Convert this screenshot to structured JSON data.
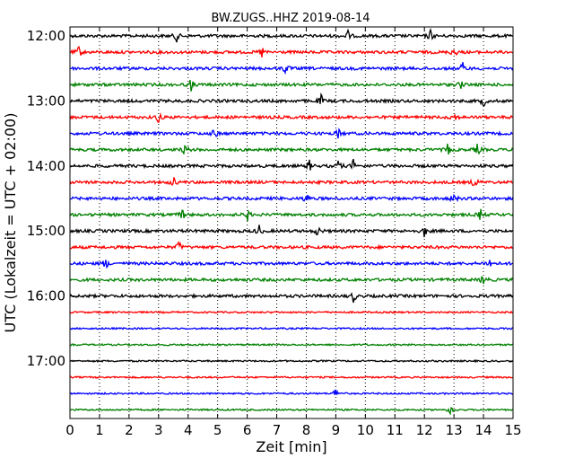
{
  "chart_data": {
    "type": "line",
    "title": "BW.ZUGS..HHZ 2019-08-14",
    "xlabel": "Zeit  [min]",
    "ylabel": "UTC (Lokalzeit = UTC + 02:00)",
    "xlim": [
      0,
      15
    ],
    "x_ticks": [
      "0",
      "1",
      "2",
      "3",
      "4",
      "5",
      "6",
      "7",
      "8",
      "9",
      "10",
      "11",
      "12",
      "13",
      "14",
      "15"
    ],
    "y_tick_labels": [
      "12:00",
      "13:00",
      "14:00",
      "15:00",
      "16:00",
      "17:00"
    ],
    "grid": "vertical dotted at each minute",
    "series_colors": [
      "#000000",
      "#ff0000",
      "#0000ff",
      "#008000"
    ],
    "traces": [
      {
        "start": "12:00",
        "color": "#000000",
        "events": [
          3.6,
          9.4,
          12.2
        ]
      },
      {
        "start": "12:15",
        "color": "#ff0000",
        "events": [
          0.3,
          6.5,
          13.0
        ]
      },
      {
        "start": "12:30",
        "color": "#0000ff",
        "events": [
          7.3,
          13.3
        ]
      },
      {
        "start": "12:45",
        "color": "#008000",
        "events": [
          4.1,
          13.2
        ]
      },
      {
        "start": "13:00",
        "color": "#000000",
        "events": [
          8.5,
          14.0
        ]
      },
      {
        "start": "13:15",
        "color": "#ff0000",
        "events": [
          3.0,
          13.0
        ]
      },
      {
        "start": "13:30",
        "color": "#0000ff",
        "events": [
          4.9,
          9.1
        ]
      },
      {
        "start": "13:45",
        "color": "#008000",
        "events": [
          3.9,
          12.8,
          13.8
        ]
      },
      {
        "start": "14:00",
        "color": "#000000",
        "events": [
          8.1,
          9.1,
          9.6
        ]
      },
      {
        "start": "14:15",
        "color": "#ff0000",
        "events": [
          3.5,
          13.7
        ]
      },
      {
        "start": "14:30",
        "color": "#0000ff",
        "events": [
          8.0,
          13.0
        ]
      },
      {
        "start": "14:45",
        "color": "#008000",
        "events": [
          3.8,
          6.0,
          13.9
        ]
      },
      {
        "start": "15:00",
        "color": "#000000",
        "events": [
          6.4,
          8.4,
          12.0
        ]
      },
      {
        "start": "15:15",
        "color": "#ff0000",
        "events": [
          3.7
        ]
      },
      {
        "start": "15:30",
        "color": "#0000ff",
        "events": [
          1.2,
          14.2
        ]
      },
      {
        "start": "15:45",
        "color": "#008000",
        "events": [
          14.0
        ]
      },
      {
        "start": "16:00",
        "color": "#000000",
        "events": [
          9.6
        ]
      },
      {
        "start": "16:15",
        "color": "#ff0000",
        "events": []
      },
      {
        "start": "16:30",
        "color": "#0000ff",
        "events": []
      },
      {
        "start": "16:45",
        "color": "#008000",
        "events": []
      },
      {
        "start": "17:00",
        "color": "#000000",
        "events": []
      },
      {
        "start": "17:15",
        "color": "#ff0000",
        "events": []
      },
      {
        "start": "17:30",
        "color": "#0000ff",
        "events": [
          9.0
        ]
      },
      {
        "start": "17:45",
        "color": "#008000",
        "events": [
          12.9
        ]
      }
    ]
  }
}
